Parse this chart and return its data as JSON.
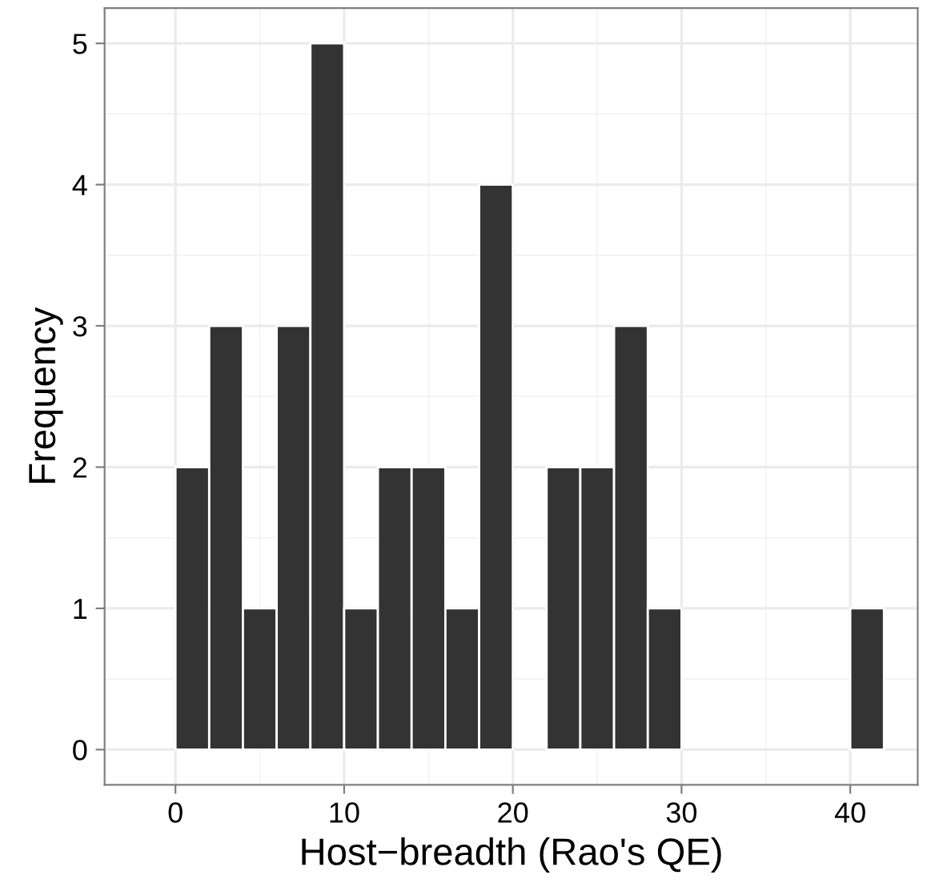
{
  "chart_data": {
    "type": "histogram",
    "xlabel": "Host−breadth (Rao's QE)",
    "ylabel": "Frequency",
    "bins": [
      0,
      2,
      4,
      6,
      8,
      10,
      12,
      14,
      16,
      18,
      20,
      22,
      24,
      26,
      28,
      30,
      32,
      34,
      36,
      38,
      40,
      42
    ],
    "values": [
      2,
      3,
      1,
      3,
      5,
      1,
      2,
      2,
      1,
      4,
      0,
      2,
      2,
      3,
      1,
      0,
      0,
      0,
      0,
      0,
      1
    ],
    "color": "#333333",
    "xlim": [
      -4.2,
      44
    ],
    "xticks": [
      0,
      10,
      20,
      30,
      40
    ],
    "ylim": [
      -0.25,
      5.25
    ],
    "yticks": [
      0,
      1,
      2,
      3,
      4,
      5
    ],
    "grid": true
  }
}
